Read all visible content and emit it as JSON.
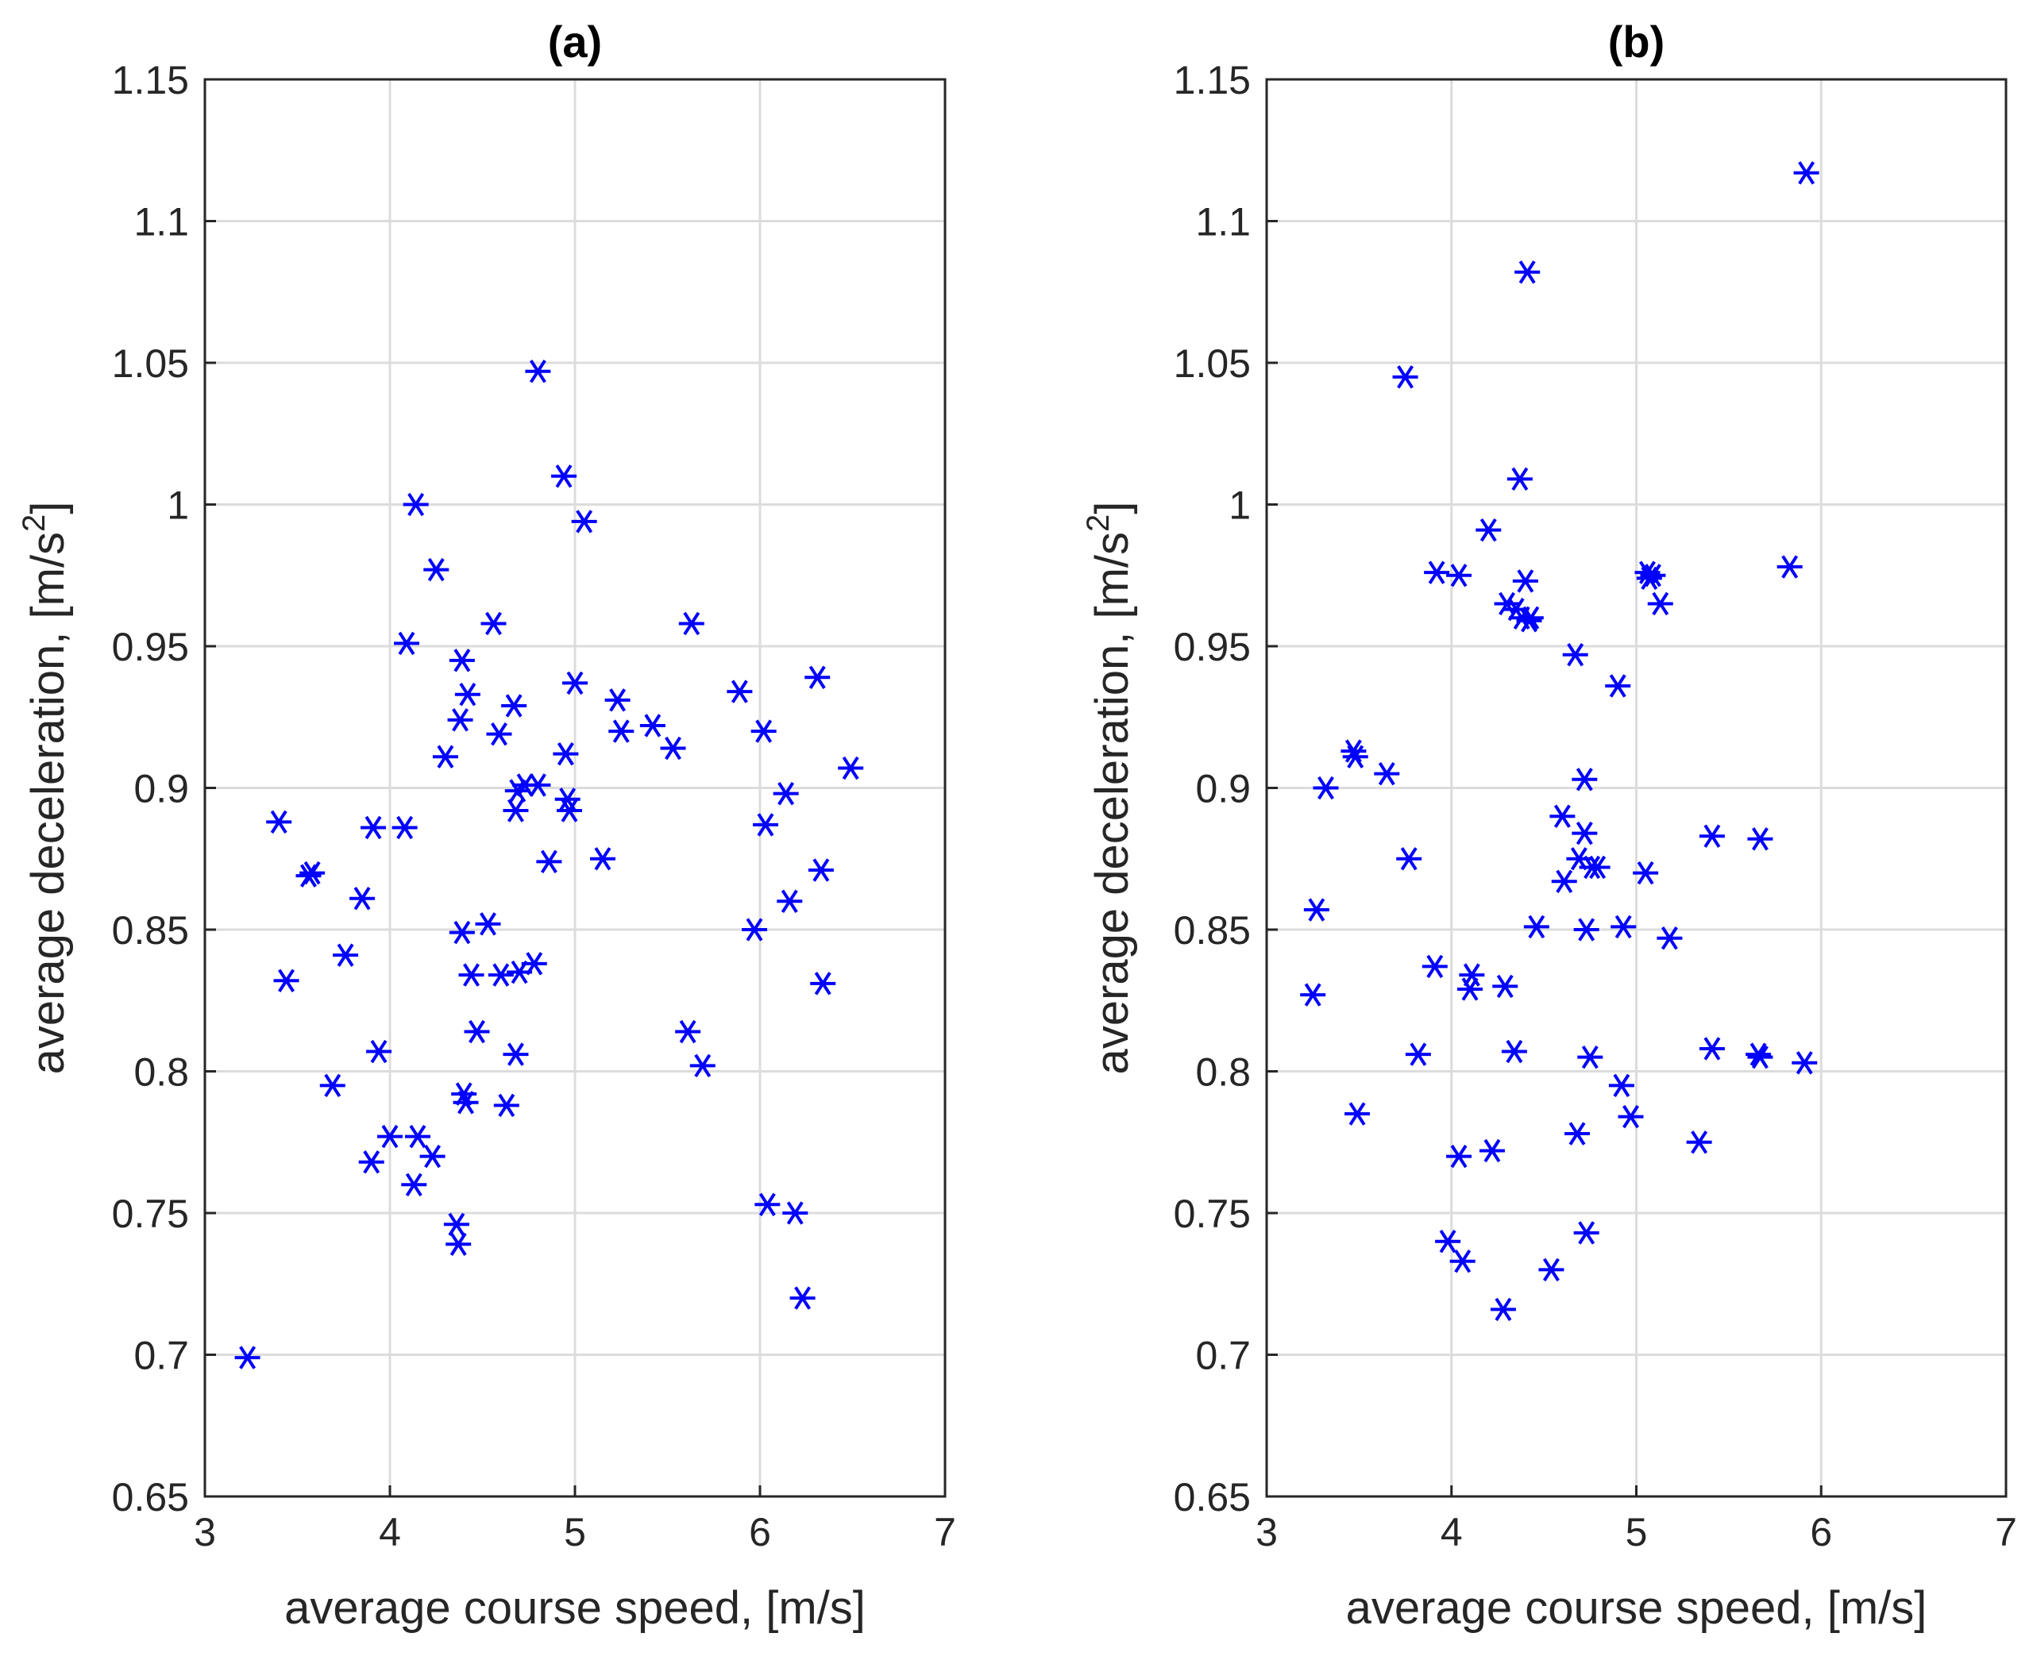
{
  "chart_data": [
    {
      "type": "scatter",
      "title": "(a)",
      "xlabel": "average course speed, [m/s]",
      "ylabel_main": "average deceleration, [m/s",
      "ylabel_sup": "2",
      "ylabel_end": "]",
      "xlim": [
        3,
        7
      ],
      "ylim": [
        0.65,
        1.15
      ],
      "xticks": [
        3,
        4,
        5,
        6,
        7
      ],
      "yticks": [
        0.65,
        0.7,
        0.75,
        0.8,
        0.85,
        0.9,
        0.95,
        1,
        1.05,
        1.1,
        1.15
      ],
      "xtick_labels": [
        "3",
        "4",
        "5",
        "6",
        "7"
      ],
      "ytick_labels": [
        "0.65",
        "0.7",
        "0.75",
        "0.8",
        "0.85",
        "0.9",
        "0.95",
        "1",
        "1.05",
        "1.1",
        "1.15"
      ],
      "grid": true,
      "marker": "asterisk",
      "color": "#0000ff",
      "x": [
        3.23,
        3.4,
        3.44,
        3.56,
        3.58,
        3.69,
        3.76,
        3.85,
        3.9,
        3.91,
        3.94,
        4.0,
        4.08,
        4.09,
        4.13,
        4.14,
        4.15,
        4.23,
        4.25,
        4.3,
        4.36,
        4.37,
        4.38,
        4.39,
        4.39,
        4.4,
        4.41,
        4.42,
        4.44,
        4.47,
        4.53,
        4.56,
        4.59,
        4.6,
        4.63,
        4.67,
        4.68,
        4.68,
        4.69,
        4.7,
        4.73,
        4.78,
        4.8,
        4.8,
        4.86,
        4.94,
        4.95,
        4.96,
        4.97,
        5.0,
        5.05,
        5.15,
        5.23,
        5.25,
        5.42,
        5.53,
        5.61,
        5.63,
        5.69,
        5.89,
        5.97,
        6.02,
        6.03,
        6.04,
        6.14,
        6.16,
        6.19,
        6.23,
        6.31,
        6.33,
        6.34,
        6.49
      ],
      "y": [
        0.699,
        0.888,
        0.832,
        0.869,
        0.87,
        0.795,
        0.841,
        0.861,
        0.768,
        0.886,
        0.807,
        0.777,
        0.886,
        0.951,
        0.76,
        1.0,
        0.777,
        0.77,
        0.977,
        0.911,
        0.746,
        0.739,
        0.924,
        0.945,
        0.849,
        0.792,
        0.789,
        0.933,
        0.834,
        0.814,
        0.852,
        0.958,
        0.919,
        0.834,
        0.788,
        0.929,
        0.806,
        0.892,
        0.899,
        0.835,
        0.901,
        0.838,
        0.901,
        1.047,
        0.874,
        1.01,
        0.912,
        0.896,
        0.892,
        0.937,
        0.994,
        0.875,
        0.931,
        0.92,
        0.922,
        0.914,
        0.814,
        0.958,
        0.802,
        0.934,
        0.85,
        0.92,
        0.887,
        0.753,
        0.898,
        0.86,
        0.75,
        0.72,
        0.939,
        0.871,
        0.831,
        0.907
      ]
    },
    {
      "type": "scatter",
      "title": "(b)",
      "xlabel": "average course speed, [m/s]",
      "ylabel_main": "average deceleration, [m/s",
      "ylabel_sup": "2",
      "ylabel_end": "]",
      "xlim": [
        3,
        7
      ],
      "ylim": [
        0.65,
        1.15
      ],
      "xticks": [
        3,
        4,
        5,
        6,
        7
      ],
      "yticks": [
        0.65,
        0.7,
        0.75,
        0.8,
        0.85,
        0.9,
        0.95,
        1,
        1.05,
        1.1,
        1.15
      ],
      "xtick_labels": [
        "3",
        "4",
        "5",
        "6",
        "7"
      ],
      "ytick_labels": [
        "0.65",
        "0.7",
        "0.75",
        "0.8",
        "0.85",
        "0.9",
        "0.95",
        "1",
        "1.05",
        "1.1",
        "1.15"
      ],
      "grid": true,
      "marker": "asterisk",
      "color": "#0000ff",
      "x": [
        3.25,
        3.27,
        3.32,
        3.47,
        3.48,
        3.49,
        3.65,
        3.75,
        3.77,
        3.82,
        3.91,
        3.92,
        3.98,
        4.04,
        4.04,
        4.06,
        4.1,
        4.11,
        4.2,
        4.22,
        4.28,
        4.29,
        4.3,
        4.34,
        4.35,
        4.37,
        4.38,
        4.4,
        4.41,
        4.42,
        4.43,
        4.46,
        4.54,
        4.6,
        4.61,
        4.67,
        4.68,
        4.69,
        4.72,
        4.72,
        4.73,
        4.73,
        4.75,
        4.76,
        4.79,
        4.9,
        4.92,
        4.93,
        4.97,
        5.05,
        5.06,
        5.07,
        5.09,
        5.13,
        5.18,
        5.34,
        5.41,
        5.41,
        5.66,
        5.67,
        5.67,
        5.83,
        5.91,
        5.92
      ],
      "y": [
        0.827,
        0.857,
        0.9,
        0.913,
        0.911,
        0.785,
        0.905,
        1.045,
        0.875,
        0.806,
        0.837,
        0.976,
        0.74,
        0.77,
        0.975,
        0.733,
        0.829,
        0.834,
        0.991,
        0.772,
        0.716,
        0.83,
        0.965,
        0.807,
        0.963,
        1.009,
        0.96,
        0.973,
        1.082,
        0.959,
        0.96,
        0.851,
        0.73,
        0.89,
        0.867,
        0.947,
        0.778,
        0.875,
        0.884,
        0.903,
        0.743,
        0.85,
        0.805,
        0.872,
        0.872,
        0.936,
        0.795,
        0.851,
        0.784,
        0.87,
        0.976,
        0.974,
        0.975,
        0.965,
        0.847,
        0.775,
        0.883,
        0.808,
        0.806,
        0.882,
        0.805,
        0.978,
        0.803,
        1.117
      ]
    }
  ]
}
